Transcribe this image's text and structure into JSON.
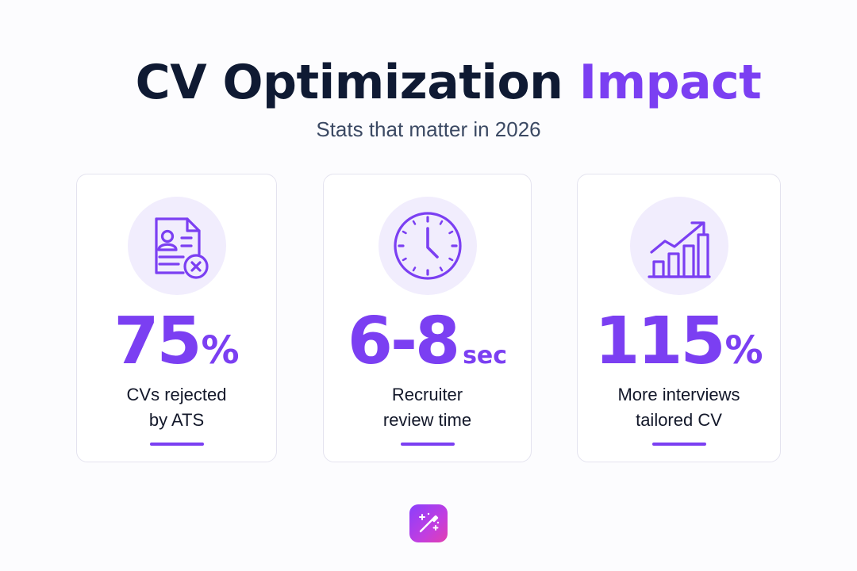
{
  "header": {
    "title_main": "CV Optimization",
    "title_accent": "Impact",
    "subtitle": "Stats that matter in 2026"
  },
  "cards": [
    {
      "icon": "document-reject-icon",
      "value": "75",
      "unit": "%",
      "label_line1": "CVs rejected",
      "label_line2": "by ATS"
    },
    {
      "icon": "clock-icon",
      "value": "6-8",
      "unit": "sec",
      "label_line1": "Recruiter",
      "label_line2": "review time"
    },
    {
      "icon": "growth-chart-icon",
      "value": "115",
      "unit": "%",
      "label_line1": "More interviews",
      "label_line2": "tailored CV"
    }
  ],
  "footer": {
    "logo_icon": "magic-wand-icon"
  },
  "colors": {
    "accent": "#7b3ff2",
    "title": "#0f1a33",
    "icon_bg": "#f1edfd"
  }
}
